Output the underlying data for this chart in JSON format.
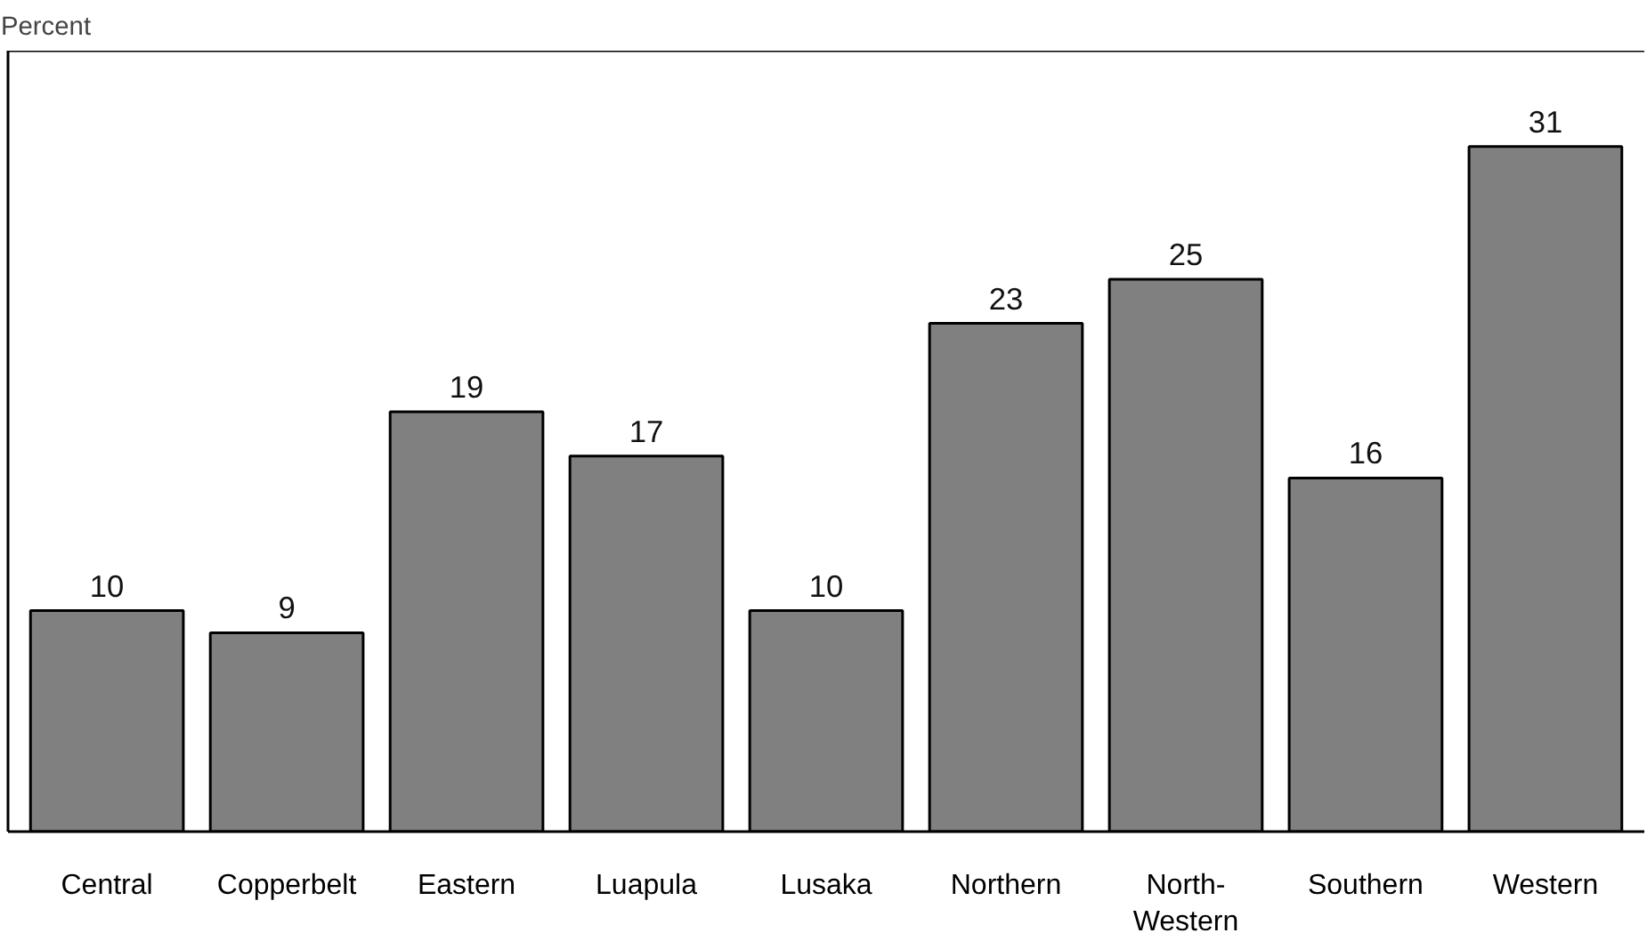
{
  "chart_data": {
    "type": "bar",
    "ylabel": "Percent",
    "categories": [
      "Central",
      "Copperbelt",
      "Eastern",
      "Luapula",
      "Lusaka",
      "Northern",
      "North-Western",
      "Southern",
      "Western"
    ],
    "values": [
      10,
      9,
      19,
      17,
      10,
      23,
      25,
      16,
      31
    ],
    "color": "#808080",
    "data_labels": true
  }
}
